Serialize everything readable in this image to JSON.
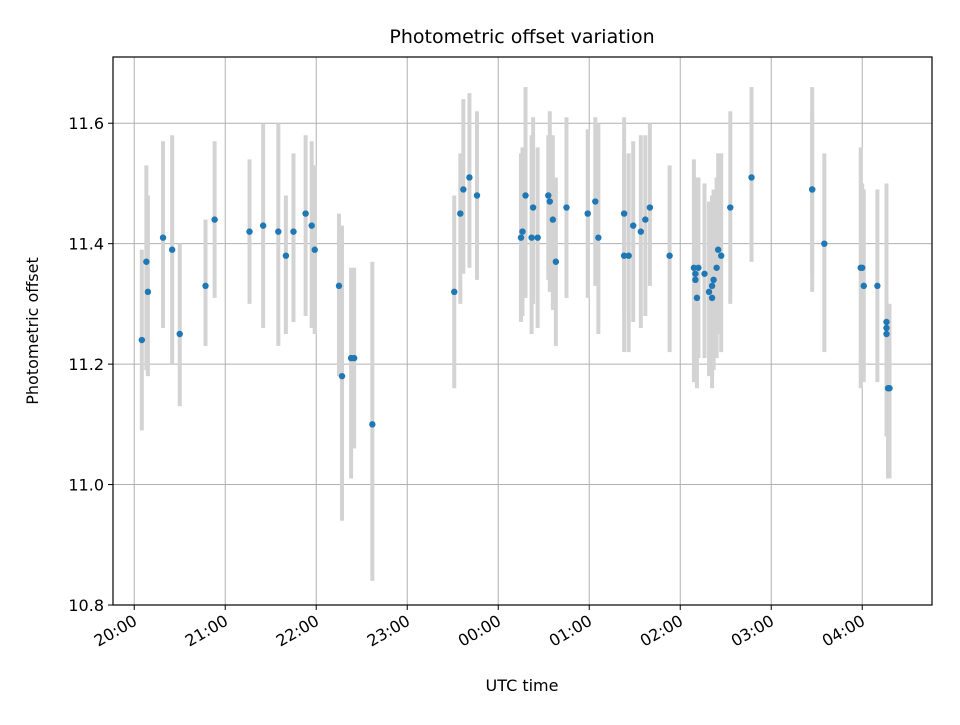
{
  "chart_data": {
    "type": "scatter",
    "title": "Photometric offset variation",
    "xlabel": "UTC time",
    "ylabel": "Photometric offset",
    "grid": true,
    "x_axis_type": "time",
    "x_start_date": "2024-01-01",
    "xlim": [
      "2024-01-01T19:46:00",
      "2024-01-02T04:46:00"
    ],
    "ylim": [
      10.8,
      11.71
    ],
    "x_ticks": [
      {
        "label": "20:00",
        "t": "2024-01-01T20:00:00"
      },
      {
        "label": "21:00",
        "t": "2024-01-01T21:00:00"
      },
      {
        "label": "22:00",
        "t": "2024-01-01T22:00:00"
      },
      {
        "label": "23:00",
        "t": "2024-01-01T23:00:00"
      },
      {
        "label": "00:00",
        "t": "2024-01-02T00:00:00"
      },
      {
        "label": "01:00",
        "t": "2024-01-02T01:00:00"
      },
      {
        "label": "02:00",
        "t": "2024-01-02T02:00:00"
      },
      {
        "label": "03:00",
        "t": "2024-01-02T03:00:00"
      },
      {
        "label": "04:00",
        "t": "2024-01-02T04:00:00"
      }
    ],
    "y_ticks": [
      {
        "label": "10.8",
        "v": 10.8
      },
      {
        "label": "11.0",
        "v": 11.0
      },
      {
        "label": "11.2",
        "v": 11.2
      },
      {
        "label": "11.4",
        "v": 11.4
      },
      {
        "label": "11.6",
        "v": 11.6
      }
    ],
    "colors": {
      "point": "#1f77b4",
      "errorbar": "#d3d3d3",
      "grid": "#b0b0b0",
      "axes": "#000000"
    },
    "series": [
      {
        "x": [
          "20:05",
          "20:08",
          "20:09",
          "20:19",
          "20:25",
          "20:30",
          "20:47",
          "20:53",
          "21:16",
          "21:25",
          "21:35",
          "21:40",
          "21:45",
          "21:53",
          "21:57",
          "21:59",
          "22:15",
          "22:17",
          "22:23",
          "22:25",
          "22:37",
          "23:31",
          "23:35",
          "23:37",
          "23:41",
          "23:46",
          "00:15",
          "00:16",
          "00:18",
          "00:22",
          "00:23",
          "00:26",
          "00:33",
          "00:34",
          "00:36",
          "00:38",
          "00:45",
          "00:59",
          "01:04",
          "01:06",
          "01:23",
          "01:23",
          "01:26",
          "01:29",
          "01:34",
          "01:37",
          "01:40",
          "01:53",
          "02:09",
          "02:10",
          "02:10",
          "02:11",
          "02:12",
          "02:16",
          "02:19",
          "02:21",
          "02:21",
          "02:22",
          "02:24",
          "02:25",
          "02:27",
          "02:33",
          "02:47",
          "03:27",
          "03:27",
          "03:35",
          "03:59",
          "04:00",
          "04:01",
          "04:10",
          "04:16",
          "04:16",
          "04:16",
          "04:17",
          "04:18"
        ],
        "y": [
          11.24,
          11.37,
          11.32,
          11.41,
          11.39,
          11.25,
          11.33,
          11.44,
          11.42,
          11.43,
          11.42,
          11.38,
          11.42,
          11.45,
          11.43,
          11.39,
          11.33,
          11.18,
          11.21,
          11.21,
          11.1,
          11.32,
          11.45,
          11.49,
          11.51,
          11.48,
          11.41,
          11.42,
          11.48,
          11.41,
          11.46,
          11.41,
          11.48,
          11.47,
          11.44,
          11.37,
          11.46,
          11.45,
          11.47,
          11.41,
          11.45,
          11.38,
          11.38,
          11.43,
          11.42,
          11.44,
          11.46,
          11.38,
          11.36,
          11.35,
          11.34,
          11.31,
          11.36,
          11.35,
          11.32,
          11.31,
          11.33,
          11.34,
          11.36,
          11.39,
          11.38,
          11.46,
          11.51,
          11.49,
          11.49,
          11.4,
          11.36,
          11.36,
          11.33,
          11.33,
          11.27,
          11.25,
          11.26,
          11.16,
          11.16
        ],
        "yerr_low": [
          11.09,
          11.19,
          11.18,
          11.26,
          11.2,
          11.13,
          11.23,
          11.31,
          11.3,
          11.26,
          11.23,
          11.25,
          11.27,
          11.28,
          11.26,
          11.25,
          11.18,
          10.94,
          11.01,
          11.06,
          10.84,
          11.16,
          11.3,
          11.35,
          11.36,
          11.34,
          11.27,
          11.28,
          11.31,
          11.25,
          11.3,
          11.26,
          11.34,
          11.32,
          11.29,
          11.23,
          11.31,
          11.31,
          11.33,
          11.25,
          11.29,
          11.22,
          11.22,
          11.27,
          11.26,
          11.28,
          11.33,
          11.22,
          11.17,
          11.19,
          11.18,
          11.16,
          11.21,
          11.21,
          11.18,
          11.16,
          11.18,
          11.19,
          11.21,
          11.25,
          11.22,
          11.3,
          11.37,
          11.32,
          11.35,
          11.22,
          11.16,
          11.22,
          11.17,
          11.17,
          11.08,
          11.1,
          11.13,
          11.01,
          11.01
        ],
        "yerr_high": [
          11.39,
          11.53,
          11.48,
          11.57,
          11.58,
          11.4,
          11.44,
          11.57,
          11.54,
          11.6,
          11.6,
          11.48,
          11.55,
          11.58,
          11.57,
          11.53,
          11.45,
          11.43,
          11.36,
          11.36,
          11.37,
          11.48,
          11.55,
          11.64,
          11.65,
          11.62,
          11.55,
          11.56,
          11.66,
          11.58,
          11.61,
          11.56,
          11.58,
          11.62,
          11.58,
          11.51,
          11.61,
          11.59,
          11.61,
          11.6,
          11.61,
          11.55,
          11.55,
          11.57,
          11.58,
          11.58,
          11.6,
          11.53,
          11.54,
          11.51,
          11.5,
          11.48,
          11.51,
          11.5,
          11.47,
          11.46,
          11.48,
          11.49,
          11.51,
          11.55,
          11.55,
          11.62,
          11.66,
          11.66,
          11.62,
          11.55,
          11.56,
          11.5,
          11.49,
          11.49,
          11.5,
          11.4,
          11.4,
          11.3,
          11.3
        ]
      }
    ]
  }
}
